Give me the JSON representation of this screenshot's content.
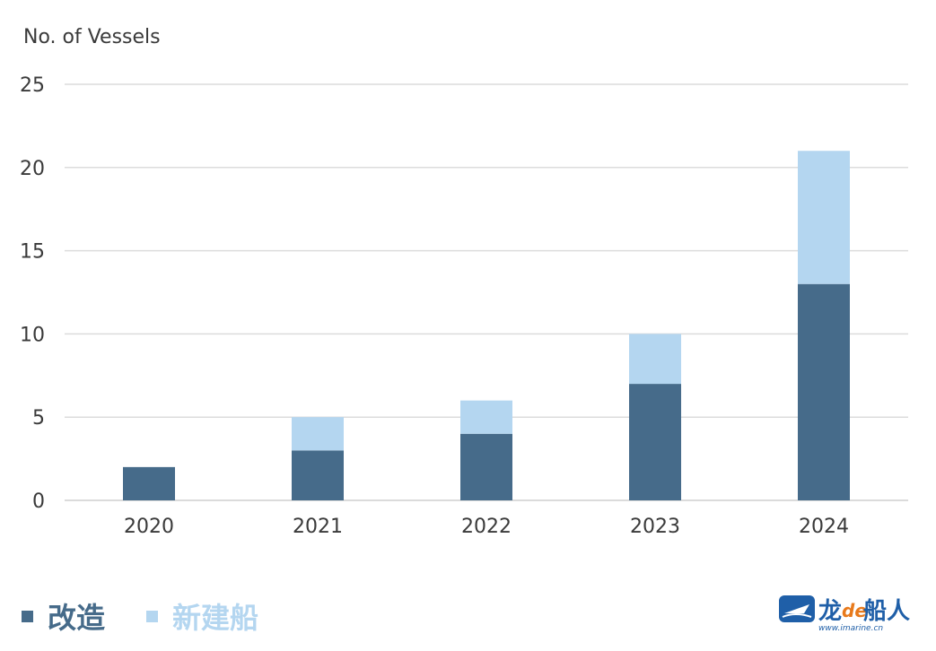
{
  "chart_data": {
    "type": "bar",
    "stacked": true,
    "ylabel": "No. of Vessels",
    "categories": [
      "2020",
      "2021",
      "2022",
      "2023",
      "2024"
    ],
    "series": [
      {
        "name": "改造",
        "values": [
          2,
          3,
          4,
          7,
          13
        ],
        "color": "#466b8a"
      },
      {
        "name": "新建船",
        "values": [
          0,
          2,
          2,
          3,
          8
        ],
        "color": "#b4d6f0"
      }
    ],
    "ylim": [
      0,
      25
    ],
    "yticks": [
      0,
      5,
      10,
      15,
      20,
      25
    ],
    "grid": true,
    "legend_position": "bottom-left"
  },
  "logo": {
    "text": "龙de船人",
    "url": "www.imarine.cn"
  }
}
